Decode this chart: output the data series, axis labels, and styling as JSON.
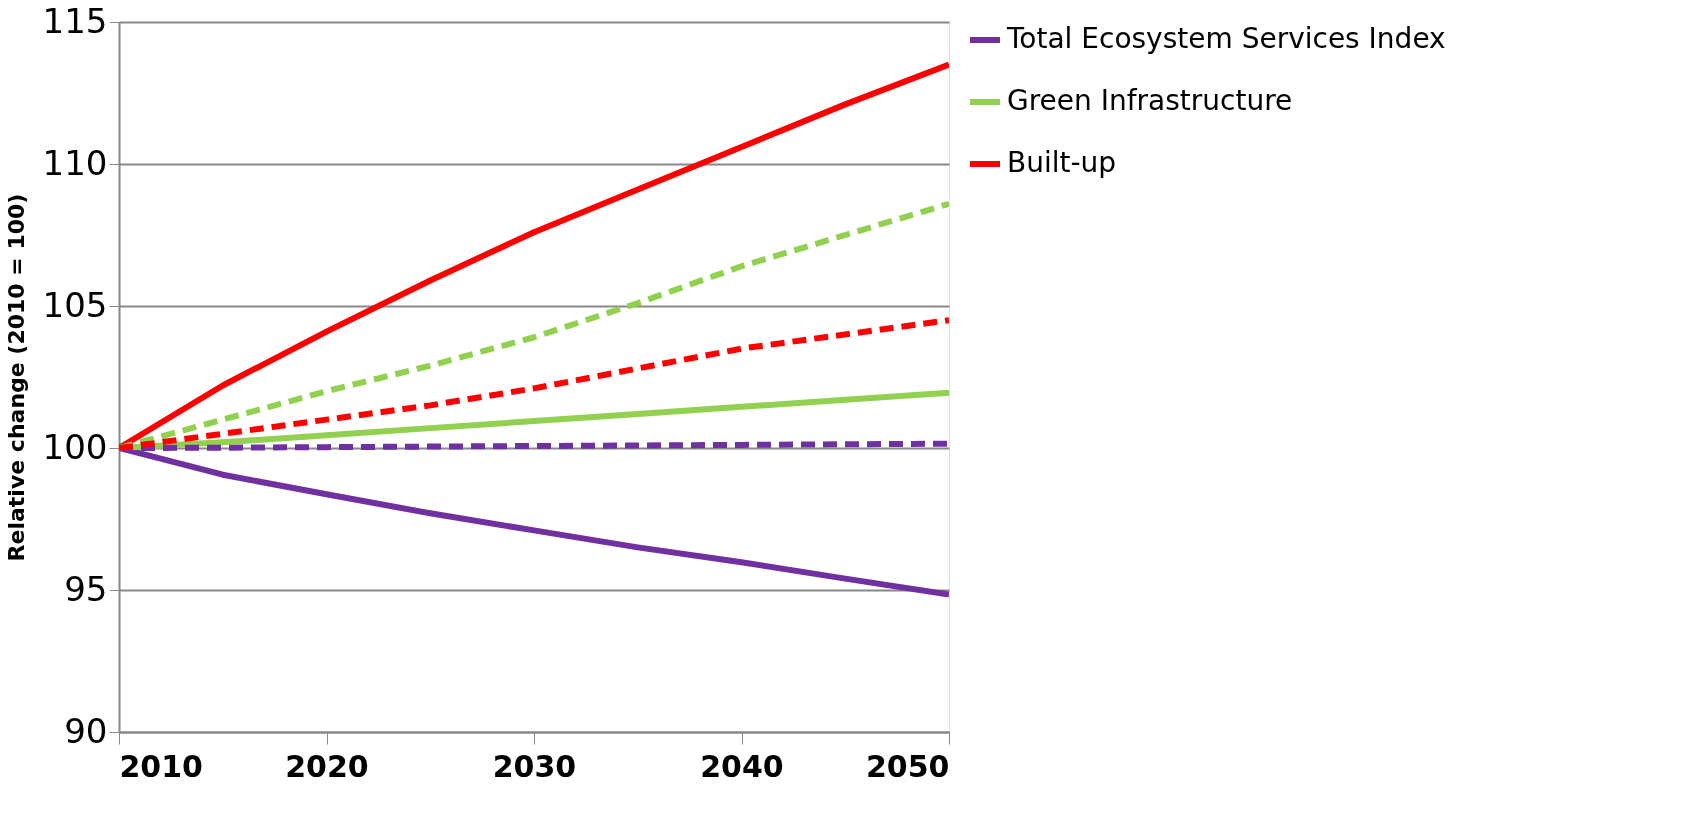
{
  "chart_data": {
    "type": "line",
    "ylabel": "Relative change (2010 = 100)",
    "x": [
      2010,
      2015,
      2020,
      2025,
      2030,
      2035,
      2040,
      2045,
      2050
    ],
    "series": [
      {
        "name": "Total Ecosystem Services Index",
        "color": "#7030a0",
        "line_style": "solid",
        "values": [
          100,
          99.06,
          98.37,
          97.7,
          97.1,
          96.5,
          95.98,
          95.4,
          94.84
        ]
      },
      {
        "name": "Green Infrastructure",
        "color": "#92d050",
        "line_style": "solid",
        "values": [
          100,
          100.2,
          100.45,
          100.7,
          100.95,
          101.2,
          101.45,
          101.7,
          101.95
        ]
      },
      {
        "name": "Built-up",
        "color": "#ff0000",
        "line_style": "solid",
        "values": [
          100,
          102.2,
          104.1,
          105.9,
          107.6,
          109.1,
          110.6,
          112.1,
          113.5
        ]
      },
      {
        "color": "#7030a0",
        "line_style": "dashed",
        "values": [
          100,
          100.01,
          100.03,
          100.05,
          100.07,
          100.09,
          100.11,
          100.13,
          100.15
        ]
      },
      {
        "color": "#92d050",
        "line_style": "dashed",
        "values": [
          100,
          101.0,
          102.0,
          102.9,
          103.9,
          105.1,
          106.4,
          107.5,
          108.6
        ]
      },
      {
        "color": "#ff0000",
        "line_style": "dashed",
        "values": [
          100,
          100.5,
          101.0,
          101.5,
          102.1,
          102.8,
          103.5,
          104.0,
          104.5
        ]
      }
    ],
    "xlim": [
      2010,
      2050
    ],
    "xticks": [
      2010,
      2020,
      2030,
      2040,
      2050
    ],
    "ylim": [
      90,
      115
    ],
    "yticks": [
      90,
      95,
      100,
      105,
      110,
      115
    ],
    "grid": "y",
    "legend": "right",
    "marker": "none"
  }
}
